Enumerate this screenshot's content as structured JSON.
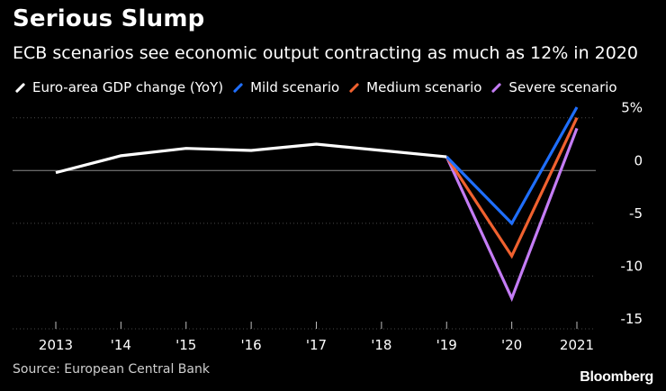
{
  "chart_data": {
    "type": "line",
    "title": "Serious Slump",
    "subtitle": "ECB scenarios see economic output contracting as much as 12% in 2020",
    "categories": [
      "2013",
      "'14",
      "'15",
      "'16",
      "'17",
      "'18",
      "'19",
      "'20",
      "2021"
    ],
    "series": [
      {
        "name": "Euro-area GDP change (YoY)",
        "color": "#ffffff",
        "values": [
          -0.2,
          1.4,
          2.1,
          1.9,
          2.5,
          1.9,
          1.3,
          null,
          null
        ]
      },
      {
        "name": "Mild scenario",
        "color": "#1f6fff",
        "values": [
          null,
          null,
          null,
          null,
          null,
          null,
          1.3,
          -5.0,
          6.0
        ]
      },
      {
        "name": "Medium scenario",
        "color": "#f0612f",
        "values": [
          null,
          null,
          null,
          null,
          null,
          null,
          1.3,
          -8.1,
          5.0
        ]
      },
      {
        "name": "Severe scenario",
        "color": "#c47cf5",
        "values": [
          null,
          null,
          null,
          null,
          null,
          null,
          1.3,
          -12.1,
          4.0
        ]
      }
    ],
    "yaxis": {
      "ticks": [
        {
          "value": 5,
          "label": "5%"
        },
        {
          "value": 0,
          "label": "0"
        },
        {
          "value": -5,
          "label": "-5"
        },
        {
          "value": -10,
          "label": "-10"
        },
        {
          "value": -15,
          "label": "-15"
        }
      ],
      "ylim": [
        -15,
        6
      ],
      "position": "right"
    },
    "xlabel": "",
    "ylabel": "",
    "legend_position": "top"
  },
  "footer": {
    "source": "Source: European Central Bank",
    "brand": "Bloomberg"
  }
}
